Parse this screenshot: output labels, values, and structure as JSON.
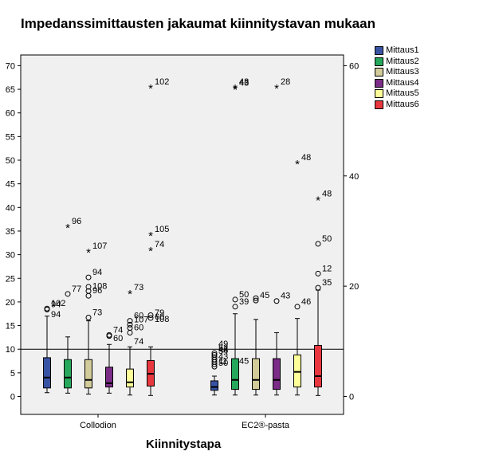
{
  "chart_data": {
    "type": "boxplot",
    "title": "Impedanssimittausten jakaumat kiinnitystavan mukaan",
    "xlabel": "Kiinnitystapa",
    "ylabel": "",
    "categories": [
      "Collodion",
      "EC2®-pasta"
    ],
    "ylim": [
      -4,
      74
    ],
    "left_ticks": [
      "0",
      "5",
      "10",
      "15",
      "20",
      "25",
      "30",
      "35",
      "40",
      "45",
      "50",
      "55",
      "60",
      "65",
      "70"
    ],
    "right_ticks": [
      "0",
      "20",
      "40",
      "60"
    ],
    "reference_line": 10,
    "grid": false,
    "legend_position": "right",
    "series": [
      {
        "name": "Mittaus1",
        "color": "#3953a4",
        "boxes": [
          {
            "category": "Collodion",
            "whisker_low": 0.8,
            "q1": 1.8,
            "median": 4.0,
            "q3": 8.2,
            "whisker_high": 17.0,
            "outliers": [
              {
                "y": 18.6,
                "label": "102",
                "marker": "circle"
              },
              {
                "y": 18.4,
                "label": "94",
                "marker": "circle"
              }
            ]
          },
          {
            "category": "EC2®-pasta",
            "whisker_low": 0.3,
            "q1": 1.3,
            "median": 2.0,
            "q3": 3.3,
            "whisker_high": 4.3,
            "outliers": [
              {
                "y": 9.2,
                "label": "52",
                "marker": "circle"
              },
              {
                "y": 8.8,
                "label": "48",
                "marker": "circle"
              },
              {
                "y": 8.3,
                "label": "",
                "marker": "circle"
              },
              {
                "y": 7.8,
                "label": "",
                "marker": "circle"
              },
              {
                "y": 7.3,
                "label": "43",
                "marker": "circle"
              },
              {
                "y": 6.8,
                "label": "",
                "marker": "circle"
              },
              {
                "y": 6.3,
                "label": "11",
                "marker": "circle"
              }
            ]
          }
        ]
      },
      {
        "name": "Mittaus2",
        "color": "#25a85b",
        "boxes": [
          {
            "category": "Collodion",
            "whisker_low": 0.7,
            "q1": 1.8,
            "median": 4.0,
            "q3": 7.8,
            "whisker_high": 12.6,
            "outliers": [
              {
                "y": 21.7,
                "label": "77",
                "marker": "circle"
              },
              {
                "y": 36.0,
                "label": "96",
                "marker": "star"
              }
            ]
          },
          {
            "category": "EC2®-pasta",
            "whisker_low": 0.3,
            "q1": 1.5,
            "median": 3.5,
            "q3": 8.0,
            "whisker_high": 17.5,
            "outliers": [
              {
                "y": 19.0,
                "label": "39",
                "marker": "circle"
              },
              {
                "y": 20.5,
                "label": "50",
                "marker": "circle"
              },
              {
                "y": 65.5,
                "label": "48",
                "marker": "star"
              },
              {
                "y": 65.3,
                "label": "43",
                "marker": "star"
              }
            ]
          }
        ]
      },
      {
        "name": "Mittaus3",
        "color": "#d2cb9a",
        "boxes": [
          {
            "category": "Collodion",
            "whisker_low": 0.5,
            "q1": 1.8,
            "median": 3.5,
            "q3": 7.8,
            "whisker_high": 16.0,
            "outliers": [
              {
                "y": 16.7,
                "label": "73",
                "marker": "circle"
              },
              {
                "y": 21.3,
                "label": "96",
                "marker": "circle"
              },
              {
                "y": 22.3,
                "label": "108",
                "marker": "circle"
              },
              {
                "y": 23.2,
                "label": "",
                "marker": "circle"
              },
              {
                "y": 25.2,
                "label": "94",
                "marker": "circle"
              },
              {
                "y": 30.8,
                "label": "107",
                "marker": "star"
              }
            ]
          },
          {
            "category": "EC2®-pasta",
            "whisker_low": 0.3,
            "q1": 1.5,
            "median": 3.5,
            "q3": 8.0,
            "whisker_high": 16.3,
            "outliers": [
              {
                "y": 20.3,
                "label": "45",
                "marker": "circle"
              },
              {
                "y": 20.8,
                "label": "",
                "marker": "circle"
              }
            ]
          }
        ]
      },
      {
        "name": "Mittaus4",
        "color": "#7b2c86",
        "boxes": [
          {
            "category": "Collodion",
            "whisker_low": 0.7,
            "q1": 2.0,
            "median": 2.8,
            "q3": 6.2,
            "whisker_high": 11.0,
            "outliers": [
              {
                "y": 12.8,
                "label": "",
                "marker": "circle"
              },
              {
                "y": 13.0,
                "label": "74",
                "marker": "circle"
              }
            ]
          },
          {
            "category": "EC2®-pasta",
            "whisker_low": 0.3,
            "q1": 1.5,
            "median": 3.5,
            "q3": 8.0,
            "whisker_high": 13.5,
            "outliers": [
              {
                "y": 20.2,
                "label": "43",
                "marker": "circle"
              },
              {
                "y": 65.5,
                "label": "28",
                "marker": "star"
              }
            ]
          }
        ]
      },
      {
        "name": "Mittaus5",
        "color": "#ffff99",
        "boxes": [
          {
            "category": "Collodion",
            "whisker_low": 0.3,
            "q1": 2.0,
            "median": 3.0,
            "q3": 5.8,
            "whisker_high": 10.5,
            "outliers": [
              {
                "y": 13.5,
                "label": "60",
                "marker": "circle"
              },
              {
                "y": 14.5,
                "label": "",
                "marker": "circle"
              },
              {
                "y": 15.2,
                "label": "107",
                "marker": "circle"
              },
              {
                "y": 16.0,
                "label": "60",
                "marker": "circle"
              },
              {
                "y": 22.0,
                "label": "73",
                "marker": "star"
              }
            ]
          },
          {
            "category": "EC2®-pasta",
            "whisker_low": 0.3,
            "q1": 2.0,
            "median": 5.2,
            "q3": 8.8,
            "whisker_high": 16.5,
            "outliers": [
              {
                "y": 19.0,
                "label": "46",
                "marker": "circle"
              },
              {
                "y": 49.5,
                "label": "48",
                "marker": "star"
              }
            ]
          }
        ]
      },
      {
        "name": "Mittaus6",
        "color": "#e8373e",
        "boxes": [
          {
            "category": "Collodion",
            "whisker_low": 0.2,
            "q1": 2.2,
            "median": 4.8,
            "q3": 7.6,
            "whisker_high": 10.5,
            "outliers": [
              {
                "y": 16.6,
                "label": "79",
                "marker": "circle"
              },
              {
                "y": 17.2,
                "label": "",
                "marker": "circle"
              },
              {
                "y": 31.1,
                "label": "74",
                "marker": "star"
              },
              {
                "y": 34.3,
                "label": "105",
                "marker": "star"
              },
              {
                "y": 65.5,
                "label": "102",
                "marker": "star"
              }
            ]
          },
          {
            "category": "EC2®-pasta",
            "whisker_low": 0.2,
            "q1": 2.0,
            "median": 4.3,
            "q3": 10.8,
            "whisker_high": 22.5,
            "outliers": [
              {
                "y": 23.0,
                "label": "35",
                "marker": "circle"
              },
              {
                "y": 26.0,
                "label": "12",
                "marker": "circle"
              },
              {
                "y": 32.3,
                "label": "50",
                "marker": "circle"
              },
              {
                "y": 41.8,
                "label": "48",
                "marker": "star"
              }
            ]
          }
        ]
      }
    ],
    "extra_labels": [
      {
        "category": "Collodion",
        "series": "Mittaus1",
        "y": 16.3,
        "text": "94"
      },
      {
        "category": "Collodion",
        "series": "Mittaus6",
        "y": 15.3,
        "text": "108"
      },
      {
        "category": "Collodion",
        "series": "Mittaus6",
        "y": 15.8,
        "text": "60"
      },
      {
        "category": "Collodion",
        "series": "Mittaus5",
        "y": 10.5,
        "text": "74"
      },
      {
        "category": "Collodion",
        "series": "Mittaus4",
        "y": 11.2,
        "text": "60"
      },
      {
        "category": "EC2®-pasta",
        "series": "Mittaus1",
        "y": 8.5,
        "text": "54"
      },
      {
        "category": "EC2®-pasta",
        "series": "Mittaus1",
        "y": 10.0,
        "text": "49"
      },
      {
        "category": "EC2®-pasta",
        "series": "Mittaus1",
        "y": 6.0,
        "text": "50"
      },
      {
        "category": "EC2®-pasta",
        "series": "Mittaus2",
        "y": 6.4,
        "text": "45"
      }
    ]
  }
}
